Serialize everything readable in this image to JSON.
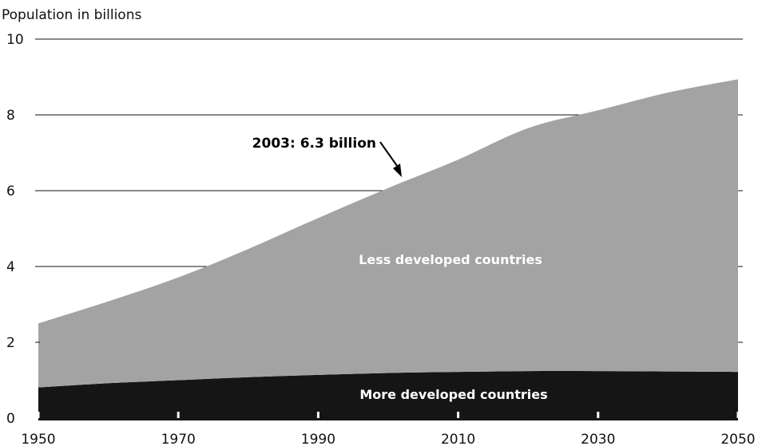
{
  "chart_data": {
    "type": "area",
    "ylabel": "Population in billions",
    "xlabel": "",
    "title": "",
    "xlim": [
      1950,
      2050
    ],
    "ylim": [
      0,
      10
    ],
    "x_ticks": [
      1950,
      1970,
      1990,
      2010,
      2030,
      2050
    ],
    "y_ticks": [
      0,
      2,
      4,
      6,
      8,
      10
    ],
    "grid": "horizontal",
    "stacked": true,
    "x": [
      1950,
      1960,
      1970,
      1980,
      1990,
      2000,
      2010,
      2020,
      2030,
      2040,
      2050
    ],
    "series": [
      {
        "name": "More developed countries",
        "color": "#151515",
        "values": [
          0.81,
          0.92,
          1.0,
          1.08,
          1.14,
          1.19,
          1.22,
          1.24,
          1.24,
          1.23,
          1.22
        ]
      },
      {
        "name": "Less developed countries",
        "color": "#a3a3a3",
        "values": [
          1.69,
          2.16,
          2.71,
          3.38,
          4.14,
          4.88,
          5.6,
          6.41,
          6.88,
          7.36,
          7.72
        ]
      }
    ],
    "annotations": [
      {
        "text": "2003: 6.3 billion",
        "x": 2003,
        "y": 6.3
      }
    ]
  }
}
